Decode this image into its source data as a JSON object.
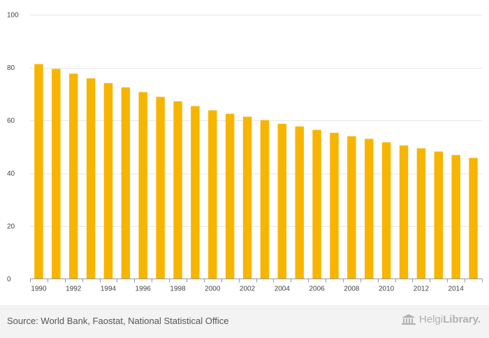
{
  "chart_data": {
    "type": "bar",
    "categories": [
      "1990",
      "1991",
      "1992",
      "1993",
      "1994",
      "1995",
      "1996",
      "1997",
      "1998",
      "1999",
      "2000",
      "2001",
      "2002",
      "2003",
      "2004",
      "2005",
      "2006",
      "2007",
      "2008",
      "2009",
      "2010",
      "2011",
      "2012",
      "2013",
      "2014",
      "2015"
    ],
    "x_tick_labels": [
      "1990",
      "1992",
      "1994",
      "1996",
      "1998",
      "2000",
      "2002",
      "2004",
      "2006",
      "2008",
      "2010",
      "2012",
      "2014"
    ],
    "values": [
      81.3,
      79.5,
      77.7,
      75.9,
      74.1,
      72.5,
      70.7,
      68.9,
      67.2,
      65.4,
      63.8,
      62.5,
      61.4,
      60.1,
      58.7,
      57.7,
      56.4,
      55.3,
      54.0,
      53.0,
      51.7,
      50.5,
      49.4,
      48.2,
      46.9,
      45.8
    ],
    "ylim": [
      0,
      100
    ],
    "y_ticks": [
      0,
      20,
      40,
      60,
      80,
      100
    ],
    "grid": true,
    "bar_color": "#f7b500",
    "grid_color": "#e6e6e6"
  },
  "footer": {
    "source": "Source: World Bank, Faostat, National Statistical Office",
    "brand_part1": "Helgi",
    "brand_part2": "Library."
  }
}
